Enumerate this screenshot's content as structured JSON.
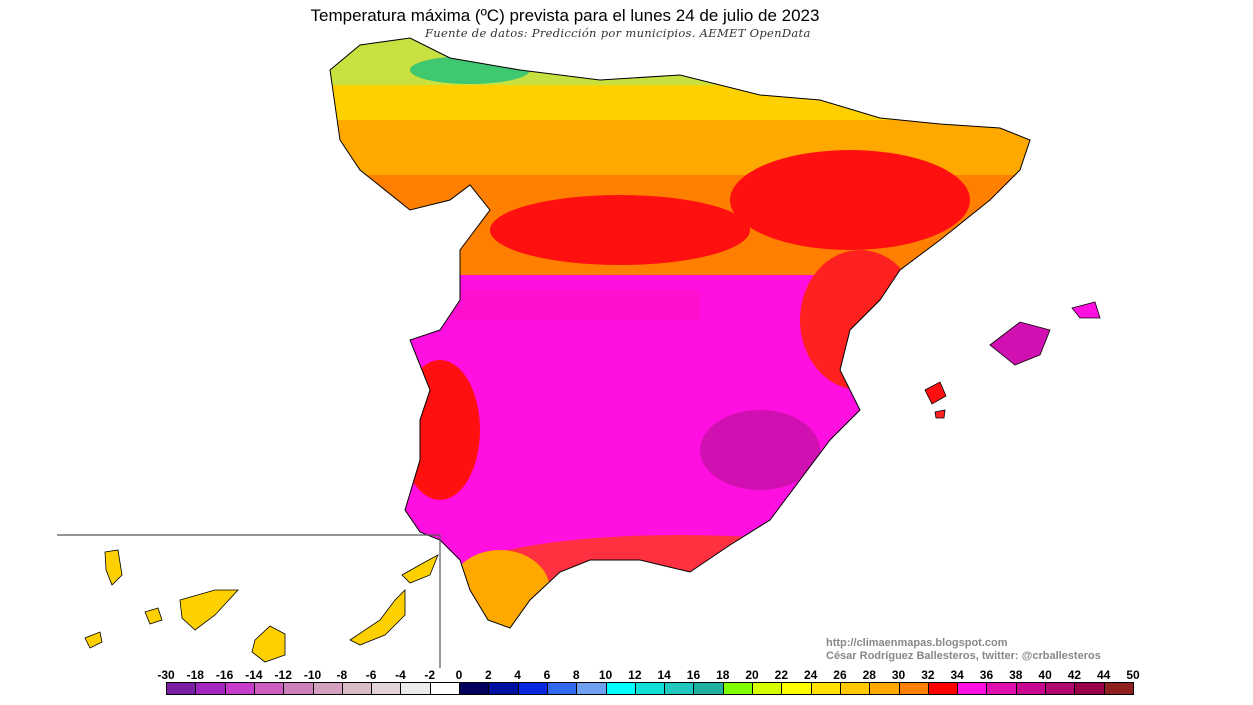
{
  "header": {
    "title": "Temperatura máxima (ºC) prevista para el lunes 24 de julio de 2023",
    "subtitle": "Fuente de datos: Predicción por municipios. AEMET OpenData"
  },
  "credits": {
    "url": "http://climaenmapas.blogspot.com",
    "author": "César Rodríguez Ballesteros, twitter: @crballesteros"
  },
  "legend": {
    "labels": [
      "-30",
      "-18",
      "-16",
      "-14",
      "-12",
      "-10",
      "-8",
      "-6",
      "-4",
      "-2",
      "0",
      "2",
      "4",
      "6",
      "8",
      "10",
      "12",
      "14",
      "16",
      "18",
      "20",
      "22",
      "24",
      "26",
      "28",
      "30",
      "32",
      "34",
      "36",
      "38",
      "40",
      "42",
      "44",
      "50"
    ],
    "colors": [
      "#7b1fa2",
      "#a326c0",
      "#c83ccc",
      "#cc5ec0",
      "#cc80bc",
      "#d4a0c0",
      "#d8bcc8",
      "#e4d4d8",
      "#ececec",
      "#ffffff",
      "#00005c",
      "#0010a0",
      "#0828e0",
      "#3068f0",
      "#70a0f0",
      "#00ffff",
      "#10e0d8",
      "#20c8c0",
      "#20b0a0",
      "#80ff00",
      "#d8ff00",
      "#ffff00",
      "#ffe000",
      "#ffc800",
      "#ffa800",
      "#ff8000",
      "#ff0000",
      "#ff10e0",
      "#e010b0",
      "#c80890",
      "#b00870",
      "#980048",
      "#902020"
    ]
  }
}
